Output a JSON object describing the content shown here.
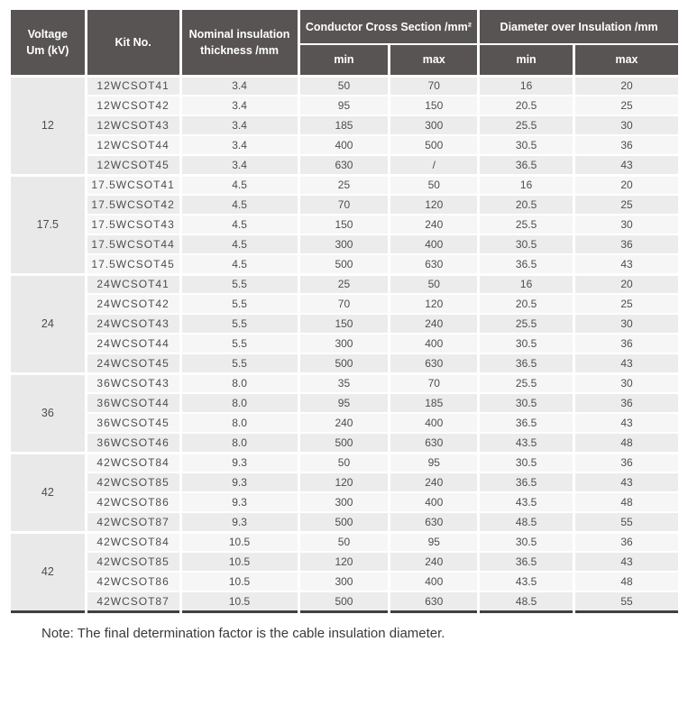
{
  "colors": {
    "header_bg": "#595454",
    "row_dark": "#ececec",
    "row_light": "#f6f6f6",
    "voltage_bg": "#e9e9e9",
    "text_dark": "#4d4d4d",
    "bottom_line": "#404040"
  },
  "table": {
    "header": {
      "voltage": {
        "line1": "Voltage",
        "line2": "Um (kV)"
      },
      "kit": "Kit No.",
      "nominal": {
        "line1": "Nominal insulation",
        "line2": "thickness /mm"
      },
      "ccs": {
        "label": "Conductor Cross Section /mm²",
        "min": "min",
        "max": "max"
      },
      "dia": {
        "label": "Diameter over Insulation /mm",
        "min": "min",
        "max": "max"
      }
    },
    "groups": [
      {
        "voltage": "12",
        "rows": [
          {
            "kit": "12WCSOT41",
            "thickness": "3.4",
            "ccs_min": "50",
            "ccs_max": "70",
            "dia_min": "16",
            "dia_max": "20"
          },
          {
            "kit": "12WCSOT42",
            "thickness": "3.4",
            "ccs_min": "95",
            "ccs_max": "150",
            "dia_min": "20.5",
            "dia_max": "25"
          },
          {
            "kit": "12WCSOT43",
            "thickness": "3.4",
            "ccs_min": "185",
            "ccs_max": "300",
            "dia_min": "25.5",
            "dia_max": "30"
          },
          {
            "kit": "12WCSOT44",
            "thickness": "3.4",
            "ccs_min": "400",
            "ccs_max": "500",
            "dia_min": "30.5",
            "dia_max": "36"
          },
          {
            "kit": "12WCSOT45",
            "thickness": "3.4",
            "ccs_min": "630",
            "ccs_max": "/",
            "dia_min": "36.5",
            "dia_max": "43"
          }
        ]
      },
      {
        "voltage": "17.5",
        "rows": [
          {
            "kit": "17.5WCSOT41",
            "thickness": "4.5",
            "ccs_min": "25",
            "ccs_max": "50",
            "dia_min": "16",
            "dia_max": "20"
          },
          {
            "kit": "17.5WCSOT42",
            "thickness": "4.5",
            "ccs_min": "70",
            "ccs_max": "120",
            "dia_min": "20.5",
            "dia_max": "25"
          },
          {
            "kit": "17.5WCSOT43",
            "thickness": "4.5",
            "ccs_min": "150",
            "ccs_max": "240",
            "dia_min": "25.5",
            "dia_max": "30"
          },
          {
            "kit": "17.5WCSOT44",
            "thickness": "4.5",
            "ccs_min": "300",
            "ccs_max": "400",
            "dia_min": "30.5",
            "dia_max": "36"
          },
          {
            "kit": "17.5WCSOT45",
            "thickness": "4.5",
            "ccs_min": "500",
            "ccs_max": "630",
            "dia_min": "36.5",
            "dia_max": "43"
          }
        ]
      },
      {
        "voltage": "24",
        "rows": [
          {
            "kit": "24WCSOT41",
            "thickness": "5.5",
            "ccs_min": "25",
            "ccs_max": "50",
            "dia_min": "16",
            "dia_max": "20"
          },
          {
            "kit": "24WCSOT42",
            "thickness": "5.5",
            "ccs_min": "70",
            "ccs_max": "120",
            "dia_min": "20.5",
            "dia_max": "25"
          },
          {
            "kit": "24WCSOT43",
            "thickness": "5.5",
            "ccs_min": "150",
            "ccs_max": "240",
            "dia_min": "25.5",
            "dia_max": "30"
          },
          {
            "kit": "24WCSOT44",
            "thickness": "5.5",
            "ccs_min": "300",
            "ccs_max": "400",
            "dia_min": "30.5",
            "dia_max": "36"
          },
          {
            "kit": "24WCSOT45",
            "thickness": "5.5",
            "ccs_min": "500",
            "ccs_max": "630",
            "dia_min": "36.5",
            "dia_max": "43"
          }
        ]
      },
      {
        "voltage": "36",
        "rows": [
          {
            "kit": "36WCSOT43",
            "thickness": "8.0",
            "ccs_min": "35",
            "ccs_max": "70",
            "dia_min": "25.5",
            "dia_max": "30"
          },
          {
            "kit": "36WCSOT44",
            "thickness": "8.0",
            "ccs_min": "95",
            "ccs_max": "185",
            "dia_min": "30.5",
            "dia_max": "36"
          },
          {
            "kit": "36WCSOT45",
            "thickness": "8.0",
            "ccs_min": "240",
            "ccs_max": "400",
            "dia_min": "36.5",
            "dia_max": "43"
          },
          {
            "kit": "36WCSOT46",
            "thickness": "8.0",
            "ccs_min": "500",
            "ccs_max": "630",
            "dia_min": "43.5",
            "dia_max": "48"
          }
        ]
      },
      {
        "voltage": "42",
        "rows": [
          {
            "kit": "42WCSOT84",
            "thickness": "9.3",
            "ccs_min": "50",
            "ccs_max": "95",
            "dia_min": "30.5",
            "dia_max": "36"
          },
          {
            "kit": "42WCSOT85",
            "thickness": "9.3",
            "ccs_min": "120",
            "ccs_max": "240",
            "dia_min": "36.5",
            "dia_max": "43"
          },
          {
            "kit": "42WCSOT86",
            "thickness": "9.3",
            "ccs_min": "300",
            "ccs_max": "400",
            "dia_min": "43.5",
            "dia_max": "48"
          },
          {
            "kit": "42WCSOT87",
            "thickness": "9.3",
            "ccs_min": "500",
            "ccs_max": "630",
            "dia_min": "48.5",
            "dia_max": "55"
          }
        ]
      },
      {
        "voltage": "42",
        "rows": [
          {
            "kit": "42WCSOT84",
            "thickness": "10.5",
            "ccs_min": "50",
            "ccs_max": "95",
            "dia_min": "30.5",
            "dia_max": "36"
          },
          {
            "kit": "42WCSOT85",
            "thickness": "10.5",
            "ccs_min": "120",
            "ccs_max": "240",
            "dia_min": "36.5",
            "dia_max": "43"
          },
          {
            "kit": "42WCSOT86",
            "thickness": "10.5",
            "ccs_min": "300",
            "ccs_max": "400",
            "dia_min": "43.5",
            "dia_max": "48"
          },
          {
            "kit": "42WCSOT87",
            "thickness": "10.5",
            "ccs_min": "500",
            "ccs_max": "630",
            "dia_min": "48.5",
            "dia_max": "55"
          }
        ]
      }
    ]
  },
  "note": "Note: The final determination factor is the cable insulation diameter."
}
